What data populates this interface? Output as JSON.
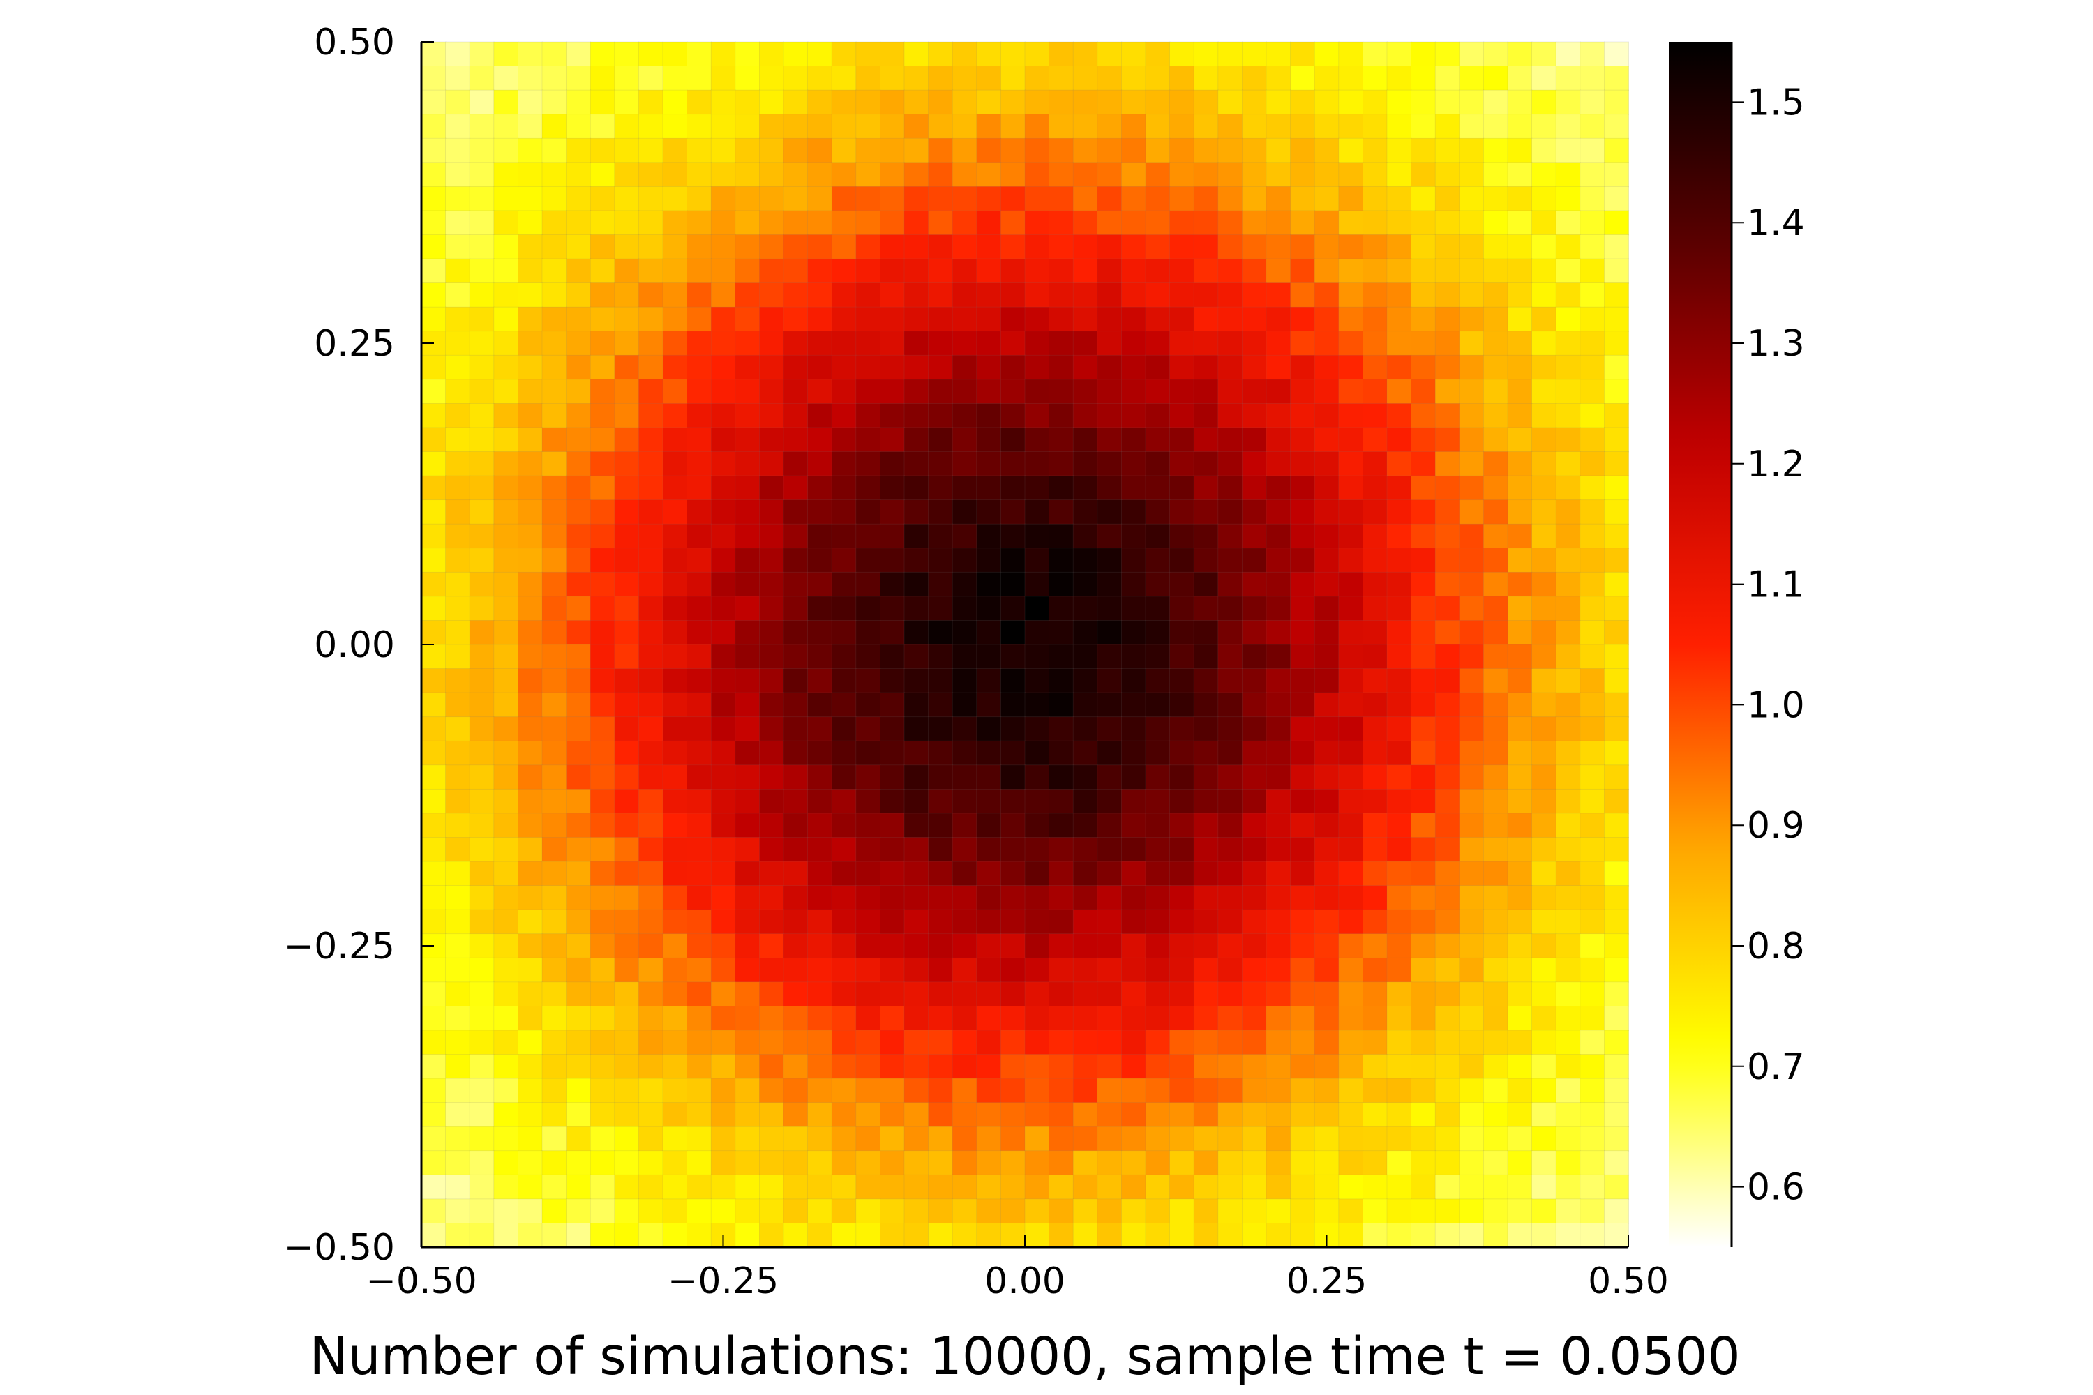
{
  "chart_data": {
    "type": "heatmap",
    "title": "",
    "xlabel": "Number of simulations: 10000, sample time t = 0.0500",
    "ylabel": "",
    "xlim": [
      -0.5,
      0.5
    ],
    "ylim": [
      -0.5,
      0.5
    ],
    "x_ticks": [
      -0.5,
      -0.25,
      0.0,
      0.25,
      0.5
    ],
    "x_tick_labels": [
      "−0.50",
      "−0.25",
      "0.00",
      "0.25",
      "0.50"
    ],
    "y_ticks": [
      -0.5,
      -0.25,
      0.0,
      0.25,
      0.5
    ],
    "y_tick_labels": [
      "−0.50",
      "−0.25",
      "0.00",
      "0.25",
      "0.50"
    ],
    "grid": {
      "rows": 50,
      "cols": 50,
      "cell_width": 0.02
    },
    "colormap": "hot (white → yellow → orange → red → black)",
    "colormap_stops": [
      "#ffffff",
      "#ffff00",
      "#ffa500",
      "#ff2000",
      "#c00000",
      "#5a0000",
      "#000000"
    ],
    "field_model": {
      "description": "approximate density, peak at center, decreasing radially",
      "center": [
        0.0,
        0.0
      ],
      "center_value": 1.52,
      "corner_value": 0.57,
      "radial_exponent": 1.0
    },
    "colorbar": {
      "range": [
        0.55,
        1.55
      ],
      "ticks": [
        0.6,
        0.7,
        0.8,
        0.9,
        1.0,
        1.1,
        1.2,
        1.3,
        1.4,
        1.5
      ],
      "tick_labels": [
        "0.6",
        "0.7",
        "0.8",
        "0.9",
        "1.0",
        "1.1",
        "1.2",
        "1.3",
        "1.4",
        "1.5"
      ]
    },
    "legend": "none",
    "grid_lines": false
  }
}
